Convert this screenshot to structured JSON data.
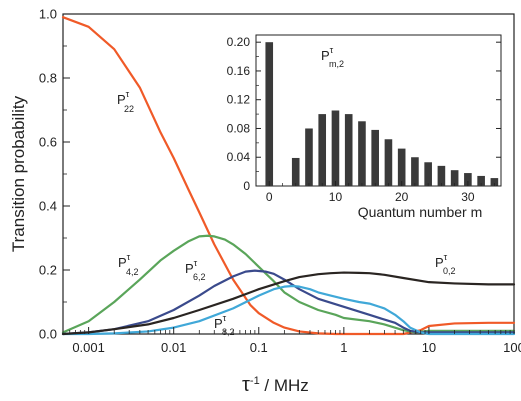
{
  "chart_data": [
    {
      "type": "line",
      "x_scale": "log",
      "xlabel_main": "τ",
      "xlabel_sup": "-1",
      "xlabel_rest": " / MHz",
      "ylabel": "Transition probability",
      "xlim": [
        0.0005,
        100
      ],
      "ylim": [
        0,
        1.0
      ],
      "x_ticks": [
        0.001,
        0.01,
        0.1,
        1,
        10,
        100
      ],
      "x_tick_labels": [
        "0.001",
        "0.01",
        "0.1",
        "1",
        "10",
        "100"
      ],
      "y_ticks": [
        0,
        0.2,
        0.4,
        0.6,
        0.8,
        1.0
      ],
      "y_tick_labels": [
        "0.0",
        "0.2",
        "0.4",
        "0.6",
        "0.8",
        "1.0"
      ],
      "grid": false,
      "series": [
        {
          "name": "P22",
          "label_main": "P",
          "label_sup": "τ",
          "label_sub": "22",
          "color": "#f05a28",
          "x": [
            0.0005,
            0.001,
            0.002,
            0.004,
            0.007,
            0.01,
            0.015,
            0.02,
            0.03,
            0.05,
            0.08,
            0.1,
            0.15,
            0.2,
            0.3,
            0.5,
            0.8,
            1,
            2,
            5,
            8,
            10,
            20,
            50,
            100
          ],
          "y": [
            0.99,
            0.96,
            0.89,
            0.77,
            0.63,
            0.55,
            0.45,
            0.38,
            0.28,
            0.17,
            0.09,
            0.065,
            0.035,
            0.02,
            0.008,
            0.002,
            0.0,
            0.0,
            0.0,
            0.0,
            0.012,
            0.025,
            0.033,
            0.035,
            0.035
          ]
        },
        {
          "name": "P4,2",
          "label_main": "P",
          "label_sup": "τ",
          "label_sub": "4,2",
          "color": "#5aa55a",
          "x": [
            0.0005,
            0.001,
            0.002,
            0.004,
            0.007,
            0.01,
            0.015,
            0.02,
            0.025,
            0.03,
            0.04,
            0.05,
            0.07,
            0.1,
            0.15,
            0.2,
            0.3,
            0.5,
            0.8,
            1,
            2,
            3,
            5,
            7,
            10,
            20,
            50,
            100
          ],
          "y": [
            0.005,
            0.04,
            0.1,
            0.17,
            0.23,
            0.26,
            0.29,
            0.305,
            0.307,
            0.305,
            0.295,
            0.28,
            0.25,
            0.21,
            0.165,
            0.13,
            0.1,
            0.075,
            0.06,
            0.05,
            0.04,
            0.03,
            0.012,
            0.005,
            0.01,
            0.01,
            0.01,
            0.01
          ]
        },
        {
          "name": "P6,2",
          "label_main": "P",
          "label_sup": "τ",
          "label_sub": "6,2",
          "color": "#3a4a8c",
          "x": [
            0.0005,
            0.001,
            0.002,
            0.005,
            0.01,
            0.02,
            0.03,
            0.05,
            0.07,
            0.09,
            0.12,
            0.15,
            0.2,
            0.3,
            0.5,
            1,
            2,
            3,
            4,
            5,
            6,
            8,
            10,
            20,
            50,
            100
          ],
          "y": [
            0.0,
            0.005,
            0.015,
            0.04,
            0.075,
            0.12,
            0.15,
            0.18,
            0.195,
            0.198,
            0.195,
            0.188,
            0.17,
            0.14,
            0.11,
            0.085,
            0.06,
            0.045,
            0.035,
            0.02,
            0.01,
            0.005,
            0.005,
            0.005,
            0.005,
            0.005
          ]
        },
        {
          "name": "P8,2",
          "label_main": "P",
          "label_sup": "τ",
          "label_sub": "8,2",
          "color": "#40a8d8",
          "x": [
            0.0005,
            0.001,
            0.002,
            0.005,
            0.01,
            0.02,
            0.05,
            0.1,
            0.15,
            0.2,
            0.25,
            0.3,
            0.4,
            0.5,
            0.7,
            1,
            1.5,
            2,
            3,
            4,
            5,
            6,
            8,
            10,
            20,
            50,
            100
          ],
          "y": [
            0.0,
            0.0,
            0.002,
            0.008,
            0.02,
            0.04,
            0.08,
            0.12,
            0.14,
            0.148,
            0.15,
            0.148,
            0.14,
            0.13,
            0.12,
            0.11,
            0.1,
            0.095,
            0.08,
            0.06,
            0.04,
            0.02,
            0.005,
            0.0,
            0.0,
            0.0,
            0.0
          ]
        },
        {
          "name": "P0,2",
          "label_main": "P",
          "label_sup": "τ",
          "label_sub": "0,2",
          "color": "#2a2522",
          "x": [
            0.0005,
            0.001,
            0.002,
            0.005,
            0.01,
            0.02,
            0.05,
            0.1,
            0.2,
            0.3,
            0.5,
            0.7,
            1,
            1.5,
            2,
            3,
            5,
            10,
            20,
            50,
            100
          ],
          "y": [
            0.0,
            0.005,
            0.015,
            0.03,
            0.05,
            0.075,
            0.11,
            0.14,
            0.165,
            0.178,
            0.187,
            0.19,
            0.192,
            0.191,
            0.19,
            0.185,
            0.175,
            0.162,
            0.158,
            0.155,
            0.155
          ]
        }
      ]
    },
    {
      "type": "bar",
      "title_main": "P",
      "title_sup": "τ",
      "title_sub": "m,2",
      "xlabel": "Quantum number m",
      "xlim": [
        -2,
        35
      ],
      "ylim": [
        0,
        0.21
      ],
      "x_ticks": [
        0,
        10,
        20,
        30
      ],
      "x_tick_labels": [
        "0",
        "10",
        "20",
        "30"
      ],
      "y_ticks": [
        0,
        0.04,
        0.08,
        0.12,
        0.16,
        0.2
      ],
      "y_tick_labels": [
        "0",
        "0.04",
        "0.08",
        "0.12",
        "0.16",
        "0.20"
      ],
      "bar_color": "#3a3a3a",
      "x": [
        0,
        4,
        6,
        8,
        10,
        12,
        14,
        16,
        18,
        20,
        22,
        24,
        26,
        28,
        30,
        32,
        34
      ],
      "values": [
        0.2,
        0.039,
        0.08,
        0.1,
        0.105,
        0.1,
        0.09,
        0.078,
        0.065,
        0.052,
        0.04,
        0.033,
        0.028,
        0.022,
        0.018,
        0.014,
        0.011
      ]
    }
  ]
}
